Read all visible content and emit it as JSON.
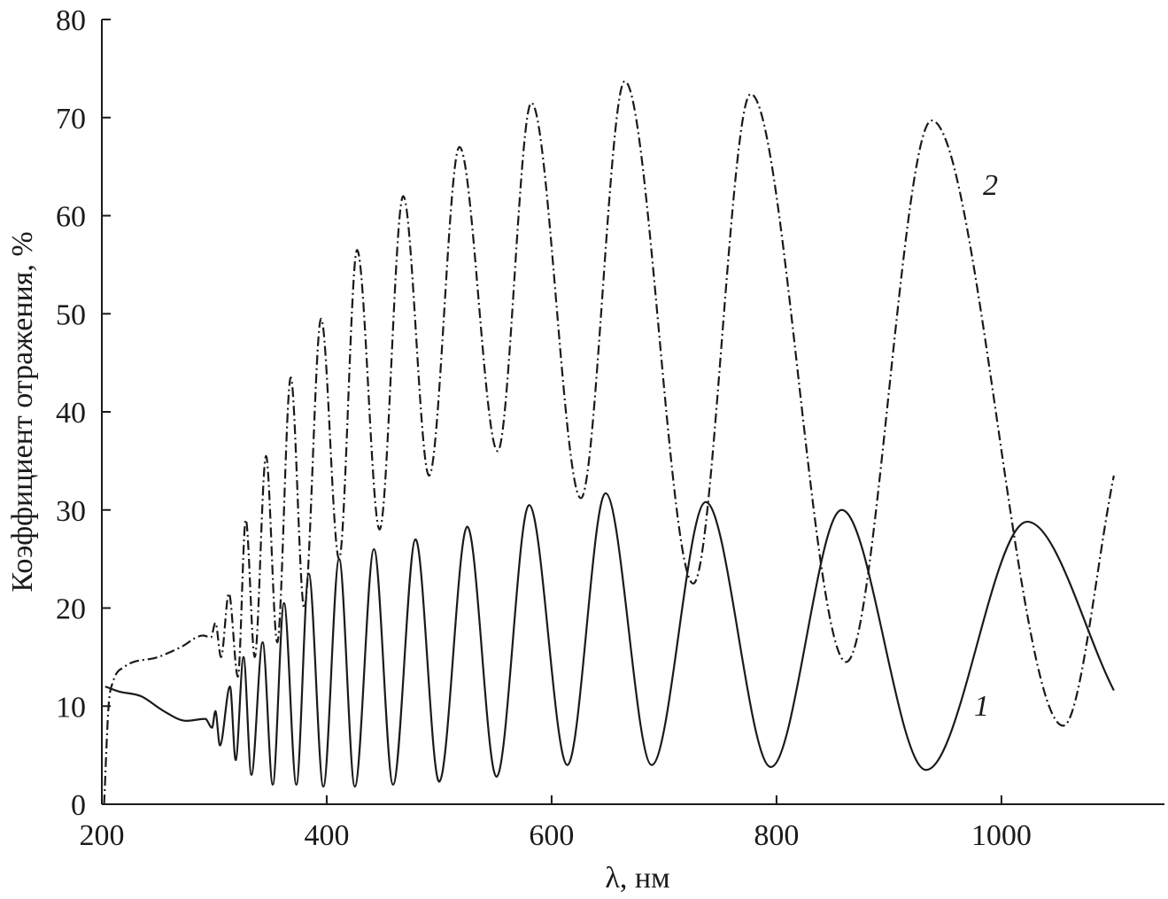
{
  "chart_data": {
    "type": "line",
    "xlabel": "λ, нм",
    "ylabel": "Коэффициент отражения, %",
    "xlim": [
      200,
      1145
    ],
    "ylim": [
      0,
      80
    ],
    "xticks": [
      200,
      400,
      600,
      800,
      1000
    ],
    "yticks": [
      0,
      10,
      20,
      30,
      40,
      50,
      60,
      70,
      80
    ],
    "grid": false,
    "series": [
      {
        "name": "1",
        "color": "#1a1a1a",
        "line_style": "solid",
        "x": [
          203,
          215,
          235,
          255,
          275,
          292,
          298,
          301,
          305,
          314,
          319,
          326,
          333,
          343,
          352,
          362,
          373,
          384,
          397,
          411,
          425,
          442,
          459,
          479,
          500,
          525,
          551,
          580,
          614,
          648,
          689,
          737,
          795,
          858,
          933,
          1023,
          1100
        ],
        "values": [
          12,
          11.5,
          11,
          9.5,
          8.5,
          8.7,
          7.8,
          9.5,
          6,
          12,
          4.5,
          15,
          3,
          16.5,
          2,
          20.5,
          2,
          23.5,
          1.8,
          25,
          1.8,
          26,
          2,
          27,
          2.3,
          28.3,
          2.8,
          30.5,
          4,
          31.7,
          4,
          30.8,
          3.8,
          30,
          3.5,
          28.8,
          11.6
        ]
      },
      {
        "name": "2",
        "color": "#1a1a1a",
        "line_style": "dashdot",
        "x": [
          202,
          206,
          210,
          220,
          250,
          270,
          290,
          297,
          301,
          306,
          313,
          321,
          328,
          336,
          346,
          356,
          368,
          380,
          395,
          411,
          427,
          447,
          468,
          491,
          518,
          552,
          582,
          626,
          665,
          726,
          777,
          862,
          938,
          1055,
          1100
        ],
        "values": [
          0,
          10,
          12.5,
          14,
          15,
          16,
          17.2,
          17,
          18.5,
          15,
          21.5,
          13,
          29,
          15,
          35.5,
          16.5,
          43.5,
          20,
          49.5,
          25,
          56.5,
          28,
          62,
          33.5,
          67,
          36,
          71.5,
          31.2,
          73.7,
          22.5,
          72.4,
          14.5,
          69.7,
          8,
          33.5
        ]
      }
    ]
  }
}
